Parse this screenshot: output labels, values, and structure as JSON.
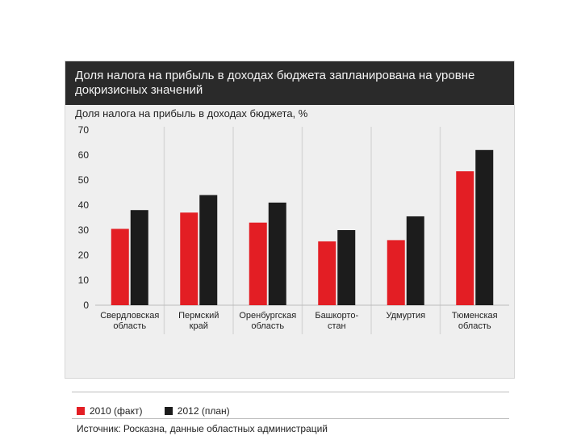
{
  "header": {
    "title": "Доля налога на прибыль в доходах бюджета запланирована на уровне докризисных значений"
  },
  "chart_data": {
    "type": "bar",
    "title": "Доля налога на прибыль в доходах бюджета запланирована на уровне докризисных значений",
    "ylabel": "Доля налога на прибыль в доходах бюджета, %",
    "ylim": [
      0,
      70
    ],
    "yticks": [
      0,
      10,
      20,
      30,
      40,
      50,
      60,
      70
    ],
    "grid": false,
    "legend_position": "bottom-left",
    "categories": [
      [
        "Свердловская",
        "область"
      ],
      [
        "Пермский",
        "край"
      ],
      [
        "Оренбургская",
        "область"
      ],
      [
        "Башкорто-",
        "стан"
      ],
      [
        "Удмуртия"
      ],
      [
        "Тюменская",
        "область"
      ]
    ],
    "series": [
      {
        "name": "2010 (факт)",
        "color": "#e31e24",
        "values": [
          30.5,
          37,
          33,
          25.5,
          26,
          53.5
        ]
      },
      {
        "name": "2012 (план)",
        "color": "#1c1c1c",
        "values": [
          38,
          44,
          41,
          30,
          35.5,
          62
        ]
      }
    ]
  },
  "source": "Источник: Росказна, данные областных администраций"
}
